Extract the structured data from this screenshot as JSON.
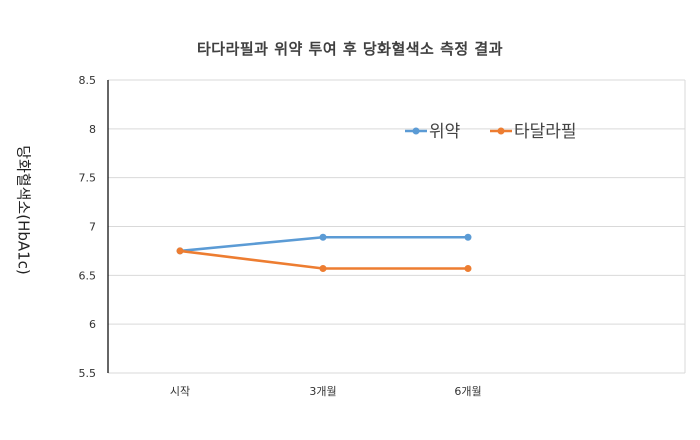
{
  "chart_data": {
    "type": "line",
    "title": "타다라필과 위약 투여 후 당화혈색소 측정 결과",
    "xlabel": "",
    "ylabel": "당화혈색소(HbA1c)",
    "categories": [
      "시작",
      "3개월",
      "6개월"
    ],
    "ylim": [
      5.5,
      8.5
    ],
    "yticks": [
      "5.5",
      "6",
      "6.5",
      "7",
      "7.5",
      "8",
      "8.5"
    ],
    "grid": true,
    "legend_position": "top-right",
    "series": [
      {
        "name": "위약",
        "values": [
          6.75,
          6.89,
          6.89
        ],
        "color": "#5b9bd5"
      },
      {
        "name": "타달라필",
        "values": [
          6.75,
          6.57,
          6.57
        ],
        "color": "#ed7d31"
      }
    ]
  }
}
